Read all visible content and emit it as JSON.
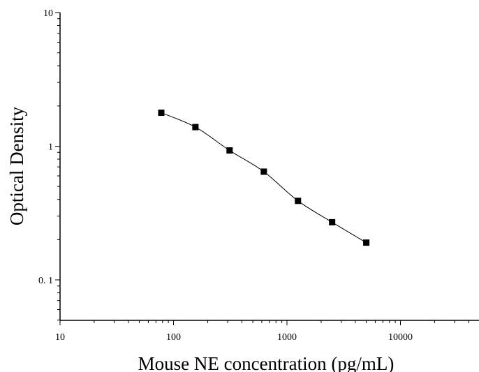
{
  "chart_data": {
    "type": "scatter",
    "title": "",
    "xlabel": "Mouse NE concentration (pg/mL)",
    "ylabel": "Optical Density",
    "x_scale": "log",
    "y_scale": "log",
    "xlim": [
      10,
      50000
    ],
    "ylim": [
      0.05,
      10
    ],
    "x_ticks": [
      {
        "value": 10,
        "label": "10"
      },
      {
        "value": 100,
        "label": "100"
      },
      {
        "value": 1000,
        "label": "1000"
      },
      {
        "value": 10000,
        "label": "10000"
      }
    ],
    "y_ticks": [
      {
        "value": 0.1,
        "label": "0. 1"
      },
      {
        "value": 1,
        "label": "1"
      },
      {
        "value": 10,
        "label": "10"
      }
    ],
    "grid": false,
    "legend": "none",
    "marker": "square",
    "color": "#000000",
    "fit_curve": true,
    "series": [
      {
        "x": [
          78,
          156,
          312,
          625,
          1250,
          2500,
          5000
        ],
        "y": [
          1.78,
          1.39,
          0.93,
          0.645,
          0.39,
          0.27,
          0.19
        ]
      }
    ]
  }
}
